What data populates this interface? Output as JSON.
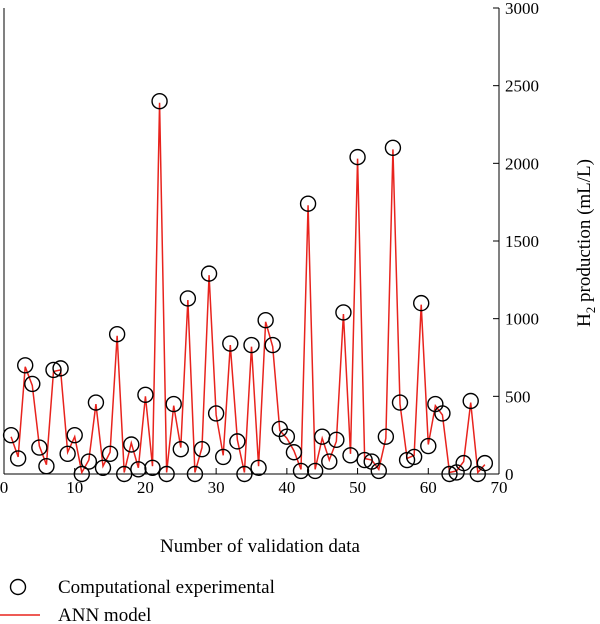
{
  "chart_data": {
    "type": "line",
    "xlabel": "Number of validation data",
    "ylabel": "H2 production (mL/L)",
    "ylabel_parts": {
      "prefix": "H",
      "subscript": "2",
      "suffix": " production (mL/L)"
    },
    "xlim": [
      0,
      70
    ],
    "ylim": [
      0,
      3000
    ],
    "xticks": [
      0,
      10,
      20,
      30,
      40,
      50,
      60,
      70
    ],
    "yticks": [
      0,
      500,
      1000,
      1500,
      2000,
      2500,
      3000
    ],
    "y_axis_side": "right",
    "grid": false,
    "legend_position": "bottom-left",
    "x": [
      1,
      2,
      3,
      4,
      5,
      6,
      7,
      8,
      9,
      10,
      11,
      12,
      13,
      14,
      15,
      16,
      17,
      18,
      19,
      20,
      21,
      22,
      23,
      24,
      25,
      26,
      27,
      28,
      29,
      30,
      31,
      32,
      33,
      34,
      35,
      36,
      37,
      38,
      39,
      40,
      41,
      42,
      43,
      44,
      45,
      46,
      47,
      48,
      49,
      50,
      51,
      52,
      53,
      54,
      55,
      56,
      57,
      58,
      59,
      60,
      61,
      62,
      63,
      64,
      65,
      66,
      67,
      68
    ],
    "series": [
      {
        "name": "Computational experimental",
        "style": "marker",
        "marker": "open-circle",
        "color": "#000000",
        "values": [
          250,
          100,
          700,
          580,
          170,
          50,
          670,
          680,
          130,
          250,
          0,
          80,
          460,
          40,
          130,
          900,
          0,
          190,
          30,
          510,
          40,
          2400,
          0,
          450,
          160,
          1130,
          0,
          160,
          1290,
          390,
          110,
          840,
          210,
          0,
          830,
          40,
          990,
          830,
          290,
          240,
          140,
          20,
          1740,
          20,
          240,
          80,
          220,
          1040,
          120,
          2040,
          90,
          80,
          20,
          240,
          2100,
          460,
          90,
          110,
          1100,
          180,
          450,
          390,
          0,
          10,
          70,
          470,
          0,
          70
        ]
      },
      {
        "name": "ANN model",
        "style": "line",
        "color": "#e8231d",
        "values": [
          240,
          110,
          690,
          570,
          180,
          60,
          660,
          670,
          140,
          240,
          10,
          90,
          450,
          50,
          140,
          890,
          10,
          200,
          40,
          500,
          50,
          2390,
          10,
          440,
          170,
          1120,
          10,
          170,
          1280,
          380,
          120,
          830,
          220,
          10,
          820,
          50,
          980,
          820,
          280,
          230,
          150,
          30,
          1730,
          30,
          230,
          90,
          210,
          1030,
          130,
          2030,
          100,
          90,
          30,
          230,
          2090,
          450,
          100,
          120,
          1090,
          190,
          440,
          380,
          10,
          20,
          80,
          460,
          10,
          60
        ]
      }
    ]
  }
}
